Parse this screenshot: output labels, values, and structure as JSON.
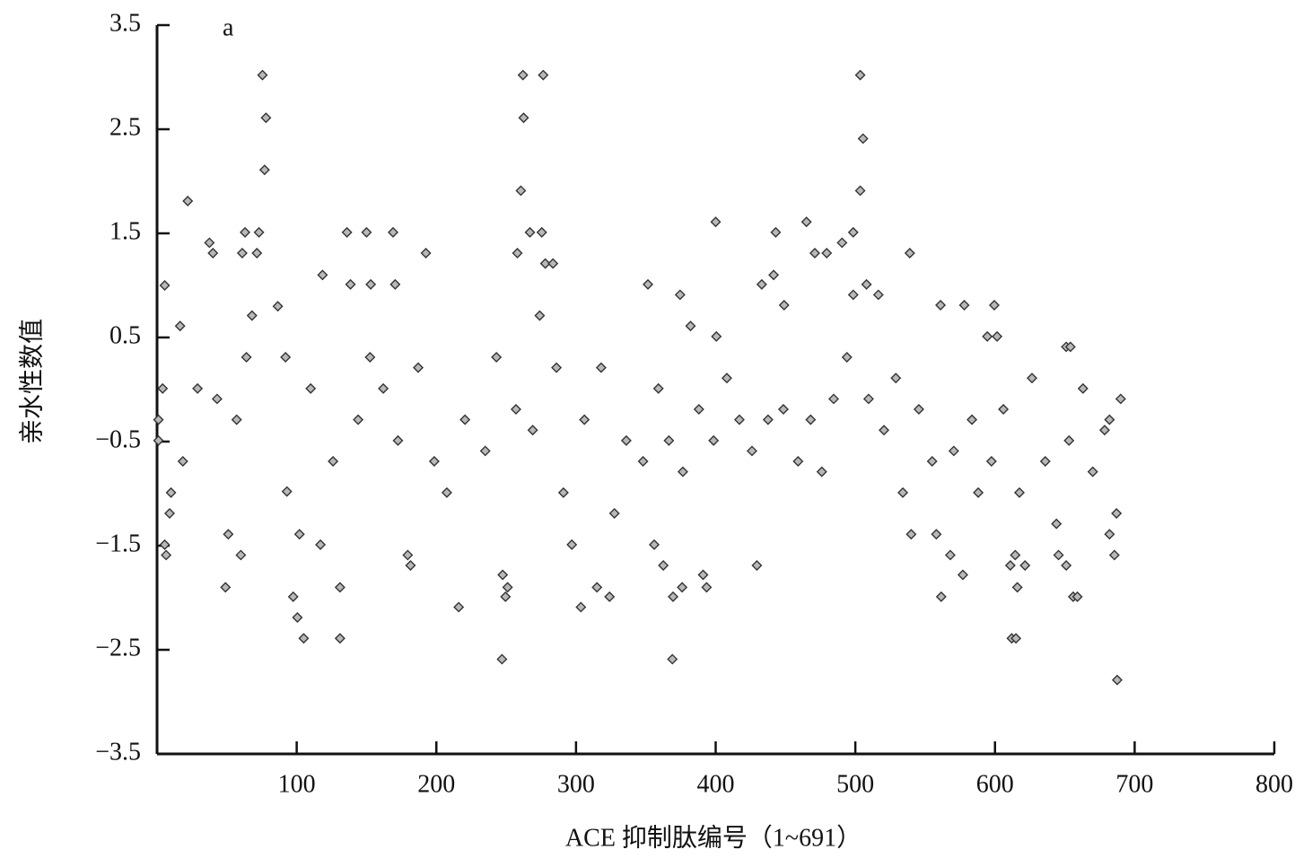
{
  "chart_data": {
    "type": "scatter",
    "annotation": "a",
    "x_label": "ACE 抑制肽编号（1~691）",
    "y_label": "亲水性数值",
    "xlim": [
      0,
      800
    ],
    "xticks": [
      100,
      200,
      300,
      400,
      500,
      600,
      700,
      800
    ],
    "ylim": [
      -3.5,
      3.5
    ],
    "yticks": [
      {
        "value": -3.5,
        "label": "−3.5"
      },
      {
        "value": -2.5,
        "label": "−2.5"
      },
      {
        "value": -1.5,
        "label": "−1.5"
      },
      {
        "value": -0.5,
        "label": "−0.5"
      },
      0.5,
      1.5,
      2.5,
      3.5
    ],
    "marker": "diamond",
    "color": "#b8b8b8",
    "grid": false,
    "x": [
      5.5,
      22,
      75.5,
      78,
      77,
      37.5,
      40,
      63,
      73,
      61,
      71.5,
      86.5,
      68,
      16.5,
      4,
      5.5,
      6.5,
      49,
      51,
      60,
      97.5,
      100.5,
      105,
      118.5,
      136,
      150,
      169,
      138.5,
      153,
      170.5,
      131,
      131,
      102,
      117,
      192.5,
      179.5,
      181.5,
      216,
      247,
      247.5,
      251,
      249.5,
      262,
      276.5,
      262.5,
      260.5,
      258,
      267,
      275.5,
      278,
      283.5,
      274,
      297,
      303.5,
      315,
      324,
      351.5,
      374.5,
      382,
      400,
      400.5,
      369,
      369.5,
      376,
      391,
      393.5,
      429.5,
      356,
      362.5,
      443,
      441.5,
      433,
      449,
      465,
      471,
      479.5,
      490.5,
      498.5,
      503.5,
      505.5,
      503.5,
      508,
      498.5,
      516.5,
      539,
      561,
      578,
      599.5,
      594.5,
      601.5,
      561.5,
      568,
      577,
      540,
      558,
      612,
      615,
      616,
      611,
      614.5,
      621.5,
      656,
      659,
      651,
      645.5,
      687.5,
      685.5,
      687,
      682,
      690,
      651,
      654,
      1,
      1,
      10,
      9,
      18.5,
      29,
      43,
      57,
      64,
      92,
      93,
      110,
      126,
      144,
      152.5,
      162,
      172.5,
      187,
      198.5,
      207.5,
      220.5,
      235,
      243,
      257,
      269,
      286,
      291,
      306,
      318,
      327.5,
      336,
      348,
      359,
      366.5,
      376.5,
      388,
      398.5,
      408,
      417,
      426,
      437.5,
      448.5,
      459,
      468,
      476,
      484.5,
      494,
      509.5,
      520.5,
      529,
      534,
      545.5,
      555,
      570.5,
      583.5,
      588,
      597.5,
      606,
      617.5,
      626.5,
      636,
      644,
      653,
      663,
      670,
      678.5,
      682
    ],
    "values": [
      1.0,
      1.81,
      3.02,
      2.61,
      2.11,
      1.41,
      1.31,
      1.51,
      1.51,
      1.31,
      1.31,
      0.8,
      0.71,
      0.61,
      0.01,
      -1.49,
      -1.59,
      -1.9,
      -1.39,
      -1.59,
      -1.99,
      -2.19,
      -2.39,
      1.1,
      1.51,
      1.51,
      1.51,
      1.01,
      1.01,
      1.01,
      -2.39,
      -1.9,
      -1.39,
      -1.49,
      1.31,
      -1.59,
      -1.69,
      -2.09,
      -2.59,
      -1.78,
      -1.9,
      -1.99,
      3.02,
      3.02,
      2.61,
      1.91,
      1.31,
      1.51,
      1.51,
      1.21,
      1.21,
      0.71,
      -1.49,
      -2.09,
      -1.9,
      -1.99,
      1.01,
      0.91,
      0.61,
      1.61,
      0.51,
      -2.59,
      -1.99,
      -1.9,
      -1.78,
      -1.9,
      -1.69,
      -1.49,
      -1.69,
      1.51,
      1.1,
      1.01,
      0.81,
      1.61,
      1.31,
      1.31,
      1.41,
      1.51,
      3.02,
      2.41,
      1.91,
      1.01,
      0.91,
      0.91,
      1.31,
      0.81,
      0.81,
      0.81,
      0.51,
      0.51,
      -1.99,
      -1.59,
      -1.78,
      -1.39,
      -1.39,
      -2.39,
      -2.39,
      -1.9,
      -1.69,
      -1.59,
      -1.69,
      -1.99,
      -1.99,
      -1.69,
      -1.59,
      -2.79,
      -1.59,
      -1.19,
      -1.39,
      -0.09,
      0.41,
      0.41,
      -0.29,
      -0.49,
      -0.99,
      -1.19,
      -0.69,
      0.01,
      -0.09,
      -0.29,
      0.31,
      0.31,
      -0.98,
      0.01,
      -0.69,
      -0.29,
      0.31,
      0.01,
      -0.49,
      0.21,
      -0.69,
      -0.99,
      -0.29,
      -0.59,
      0.31,
      -0.19,
      -0.39,
      0.21,
      -0.99,
      -0.29,
      0.21,
      -1.19,
      -0.49,
      -0.69,
      0.01,
      -0.49,
      -0.79,
      -0.19,
      -0.49,
      0.11,
      -0.29,
      -0.59,
      -0.29,
      -0.19,
      -0.69,
      -0.29,
      -0.79,
      -0.09,
      0.31,
      -0.09,
      -0.39,
      0.11,
      -0.99,
      -0.19,
      -0.69,
      -0.59,
      -0.29,
      -0.99,
      -0.69,
      -0.19,
      -0.99,
      0.11,
      -0.69,
      -1.29,
      -0.49,
      0.01,
      -0.79,
      -0.39,
      -0.29
    ]
  }
}
